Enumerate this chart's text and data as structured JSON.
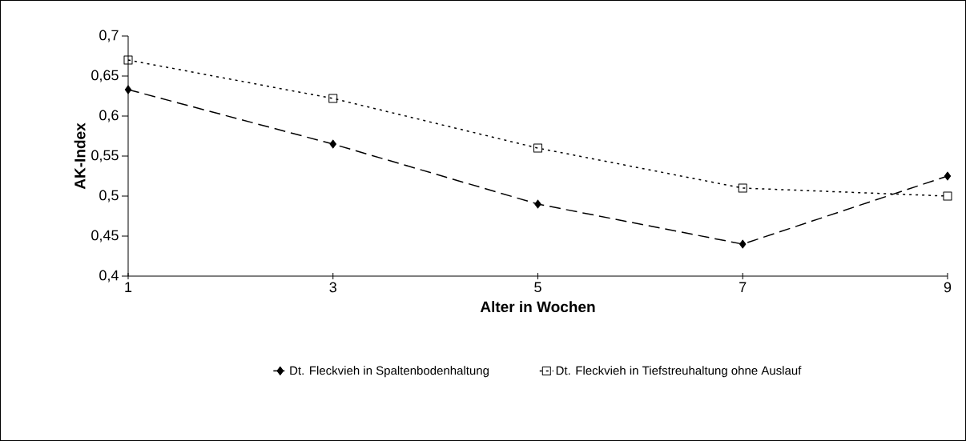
{
  "chart_data": {
    "type": "line",
    "xlabel": "Alter in Wochen",
    "ylabel": "AK-Index",
    "x": [
      1,
      3,
      5,
      7,
      9
    ],
    "series": [
      {
        "name": "Dt. Fleckvieh in Spaltenbodenhaltung",
        "color": "#000000",
        "values": [
          0.633,
          0.565,
          0.49,
          0.44,
          0.525
        ],
        "marker": "diamond",
        "line_style": "dashed"
      },
      {
        "name": "Dt. Fleckvieh in Tiefstreuhaltung ohne Auslauf",
        "color": "#000000",
        "values": [
          0.67,
          0.622,
          0.56,
          0.51,
          0.5
        ],
        "marker": "square",
        "line_style": "dotted"
      }
    ],
    "xlim": [
      1,
      9
    ],
    "xticks": [
      1,
      3,
      5,
      7,
      9
    ],
    "ylim": [
      0.4,
      0.7
    ],
    "yticks": [
      {
        "value": 0.4,
        "label": "0,4"
      },
      {
        "value": 0.45,
        "label": "0,45"
      },
      {
        "value": 0.5,
        "label": "0,5"
      },
      {
        "value": 0.55,
        "label": "0,55"
      },
      {
        "value": 0.6,
        "label": "0,6"
      },
      {
        "value": 0.65,
        "label": "0,65"
      },
      {
        "value": 0.7,
        "label": "0,7"
      }
    ],
    "grid": false,
    "legend": "bottom"
  }
}
